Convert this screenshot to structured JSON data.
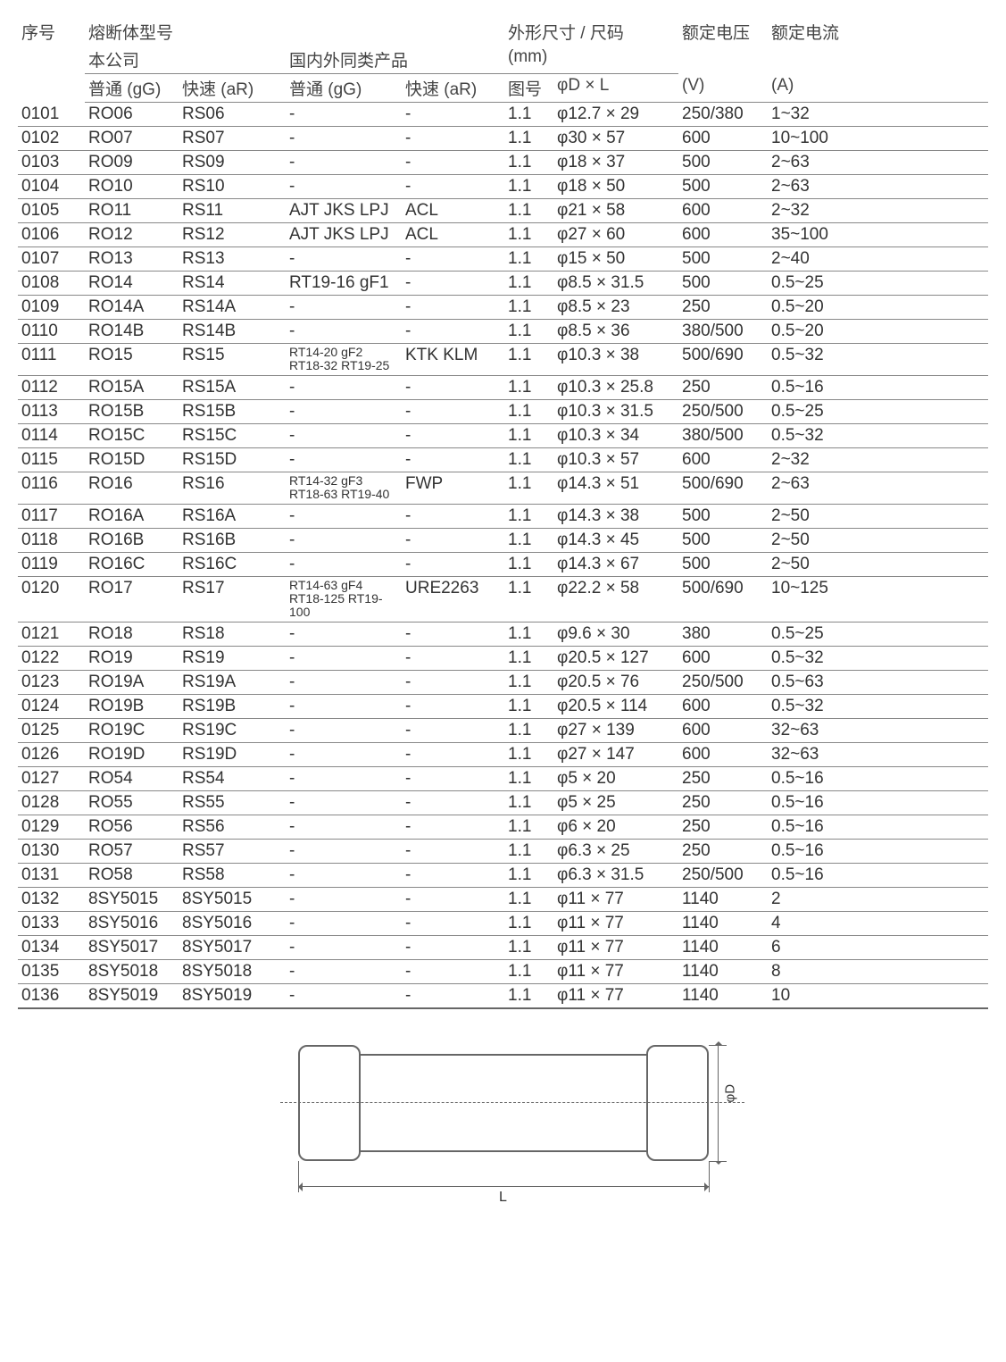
{
  "headers": {
    "seq": "序号",
    "model_group": "熔断体型号",
    "company": "本公司",
    "domestic": "国内外同类产品",
    "size_group": "外形尺寸 / 尺码",
    "size_unit": "(mm)",
    "voltage": "额定电压",
    "current": "额定电流",
    "gg": "普通 (gG)",
    "ar": "快速 (aR)",
    "fig": "图号",
    "dim": "φD × L",
    "v_unit": "(V)",
    "a_unit": "(A)"
  },
  "diagram": {
    "label_d": "φD",
    "label_l": "L"
  },
  "rows": [
    {
      "seq": "0101",
      "gg1": "RO06",
      "ar1": "RS06",
      "gg2": "-",
      "ar2": "-",
      "fig": "1.1",
      "dim": "φ12.7 × 29",
      "v": "250/380",
      "a": "1~32"
    },
    {
      "seq": "0102",
      "gg1": "RO07",
      "ar1": "RS07",
      "gg2": "-",
      "ar2": "-",
      "fig": "1.1",
      "dim": "φ30 × 57",
      "v": "600",
      "a": "10~100"
    },
    {
      "seq": "0103",
      "gg1": "RO09",
      "ar1": "RS09",
      "gg2": "-",
      "ar2": "-",
      "fig": "1.1",
      "dim": "φ18 × 37",
      "v": "500",
      "a": "2~63"
    },
    {
      "seq": "0104",
      "gg1": "RO10",
      "ar1": "RS10",
      "gg2": "-",
      "ar2": "-",
      "fig": "1.1",
      "dim": "φ18 × 50",
      "v": "500",
      "a": "2~63"
    },
    {
      "seq": "0105",
      "gg1": "RO11",
      "ar1": "RS11",
      "gg2": "AJT JKS LPJ",
      "ar2": "ACL",
      "fig": "1.1",
      "dim": "φ21 × 58",
      "v": "600",
      "a": "2~32"
    },
    {
      "seq": "0106",
      "gg1": "RO12",
      "ar1": "RS12",
      "gg2": "AJT JKS LPJ",
      "ar2": "ACL",
      "fig": "1.1",
      "dim": "φ27 × 60",
      "v": "600",
      "a": "35~100"
    },
    {
      "seq": "0107",
      "gg1": "RO13",
      "ar1": "RS13",
      "gg2": "-",
      "ar2": "-",
      "fig": "1.1",
      "dim": "φ15 × 50",
      "v": "500",
      "a": "2~40"
    },
    {
      "seq": "0108",
      "gg1": "RO14",
      "ar1": "RS14",
      "gg2": "RT19-16 gF1",
      "ar2": "-",
      "fig": "1.1",
      "dim": "φ8.5 × 31.5",
      "v": "500",
      "a": "0.5~25"
    },
    {
      "seq": "0109",
      "gg1": "RO14A",
      "ar1": "RS14A",
      "gg2": "-",
      "ar2": "-",
      "fig": "1.1",
      "dim": "φ8.5 × 23",
      "v": "250",
      "a": "0.5~20"
    },
    {
      "seq": "0110",
      "gg1": "RO14B",
      "ar1": "RS14B",
      "gg2": "-",
      "ar2": "-",
      "fig": "1.1",
      "dim": "φ8.5 × 36",
      "v": "380/500",
      "a": "0.5~20"
    },
    {
      "seq": "0111",
      "gg1": "RO15",
      "ar1": "RS15",
      "gg2": "RT14-20 gF2\nRT18-32 RT19-25",
      "ar2": "KTK KLM",
      "fig": "1.1",
      "dim": "φ10.3 × 38",
      "v": "500/690",
      "a": "0.5~32"
    },
    {
      "seq": "0112",
      "gg1": "RO15A",
      "ar1": "RS15A",
      "gg2": "-",
      "ar2": "-",
      "fig": "1.1",
      "dim": "φ10.3 × 25.8",
      "v": "250",
      "a": "0.5~16"
    },
    {
      "seq": "0113",
      "gg1": "RO15B",
      "ar1": "RS15B",
      "gg2": "-",
      "ar2": "-",
      "fig": "1.1",
      "dim": "φ10.3 × 31.5",
      "v": "250/500",
      "a": "0.5~25"
    },
    {
      "seq": "0114",
      "gg1": "RO15C",
      "ar1": "RS15C",
      "gg2": "-",
      "ar2": "-",
      "fig": "1.1",
      "dim": "φ10.3 × 34",
      "v": "380/500",
      "a": "0.5~32"
    },
    {
      "seq": "0115",
      "gg1": "RO15D",
      "ar1": "RS15D",
      "gg2": "-",
      "ar2": "-",
      "fig": "1.1",
      "dim": "φ10.3 × 57",
      "v": "600",
      "a": "2~32"
    },
    {
      "seq": "0116",
      "gg1": "RO16",
      "ar1": "RS16",
      "gg2": "RT14-32 gF3\nRT18-63 RT19-40",
      "ar2": "FWP",
      "fig": "1.1",
      "dim": "φ14.3 × 51",
      "v": "500/690",
      "a": "2~63"
    },
    {
      "seq": "0117",
      "gg1": "RO16A",
      "ar1": "RS16A",
      "gg2": "-",
      "ar2": "-",
      "fig": "1.1",
      "dim": "φ14.3 × 38",
      "v": "500",
      "a": "2~50"
    },
    {
      "seq": "0118",
      "gg1": "RO16B",
      "ar1": "RS16B",
      "gg2": "-",
      "ar2": "-",
      "fig": "1.1",
      "dim": "φ14.3 × 45",
      "v": "500",
      "a": "2~50"
    },
    {
      "seq": "0119",
      "gg1": "RO16C",
      "ar1": "RS16C",
      "gg2": "-",
      "ar2": "-",
      "fig": "1.1",
      "dim": "φ14.3 × 67",
      "v": "500",
      "a": "2~50"
    },
    {
      "seq": "0120",
      "gg1": "RO17",
      "ar1": "RS17",
      "gg2": "RT14-63 gF4\nRT18-125 RT19-100",
      "ar2": "URE2263",
      "fig": "1.1",
      "dim": "φ22.2 × 58",
      "v": "500/690",
      "a": "10~125"
    },
    {
      "seq": "0121",
      "gg1": "RO18",
      "ar1": "RS18",
      "gg2": "-",
      "ar2": "-",
      "fig": "1.1",
      "dim": "φ9.6 × 30",
      "v": "380",
      "a": "0.5~25"
    },
    {
      "seq": "0122",
      "gg1": "RO19",
      "ar1": "RS19",
      "gg2": "-",
      "ar2": "-",
      "fig": "1.1",
      "dim": "φ20.5 × 127",
      "v": "600",
      "a": "0.5~32"
    },
    {
      "seq": "0123",
      "gg1": "RO19A",
      "ar1": "RS19A",
      "gg2": "-",
      "ar2": "-",
      "fig": "1.1",
      "dim": "φ20.5 × 76",
      "v": "250/500",
      "a": "0.5~63"
    },
    {
      "seq": "0124",
      "gg1": "RO19B",
      "ar1": "RS19B",
      "gg2": "-",
      "ar2": "-",
      "fig": "1.1",
      "dim": "φ20.5 × 114",
      "v": "600",
      "a": "0.5~32"
    },
    {
      "seq": "0125",
      "gg1": "RO19C",
      "ar1": "RS19C",
      "gg2": "-",
      "ar2": "-",
      "fig": "1.1",
      "dim": "φ27 × 139",
      "v": "600",
      "a": "32~63"
    },
    {
      "seq": "0126",
      "gg1": "RO19D",
      "ar1": "RS19D",
      "gg2": "-",
      "ar2": "-",
      "fig": "1.1",
      "dim": "φ27 × 147",
      "v": "600",
      "a": "32~63"
    },
    {
      "seq": "0127",
      "gg1": "RO54",
      "ar1": "RS54",
      "gg2": "-",
      "ar2": "-",
      "fig": "1.1",
      "dim": "φ5 × 20",
      "v": "250",
      "a": "0.5~16"
    },
    {
      "seq": "0128",
      "gg1": "RO55",
      "ar1": "RS55",
      "gg2": "-",
      "ar2": "-",
      "fig": "1.1",
      "dim": "φ5 × 25",
      "v": "250",
      "a": "0.5~16"
    },
    {
      "seq": "0129",
      "gg1": "RO56",
      "ar1": "RS56",
      "gg2": "-",
      "ar2": "-",
      "fig": "1.1",
      "dim": "φ6 × 20",
      "v": "250",
      "a": "0.5~16"
    },
    {
      "seq": "0130",
      "gg1": "RO57",
      "ar1": "RS57",
      "gg2": "-",
      "ar2": "-",
      "fig": "1.1",
      "dim": "φ6.3 × 25",
      "v": "250",
      "a": "0.5~16"
    },
    {
      "seq": "0131",
      "gg1": "RO58",
      "ar1": "RS58",
      "gg2": "-",
      "ar2": "-",
      "fig": "1.1",
      "dim": "φ6.3 × 31.5",
      "v": "250/500",
      "a": "0.5~16"
    },
    {
      "seq": "0132",
      "gg1": "8SY5015",
      "ar1": "8SY5015",
      "gg2": "-",
      "ar2": "-",
      "fig": "1.1",
      "dim": "φ11 × 77",
      "v": "1140",
      "a": "2"
    },
    {
      "seq": "0133",
      "gg1": "8SY5016",
      "ar1": "8SY5016",
      "gg2": "-",
      "ar2": "-",
      "fig": "1.1",
      "dim": "φ11 × 77",
      "v": "1140",
      "a": "4"
    },
    {
      "seq": "0134",
      "gg1": "8SY5017",
      "ar1": "8SY5017",
      "gg2": "-",
      "ar2": "-",
      "fig": "1.1",
      "dim": "φ11 × 77",
      "v": "1140",
      "a": "6"
    },
    {
      "seq": "0135",
      "gg1": "8SY5018",
      "ar1": "8SY5018",
      "gg2": "-",
      "ar2": "-",
      "fig": "1.1",
      "dim": "φ11 × 77",
      "v": "1140",
      "a": "8"
    },
    {
      "seq": "0136",
      "gg1": "8SY5019",
      "ar1": "8SY5019",
      "gg2": "-",
      "ar2": "-",
      "fig": "1.1",
      "dim": "φ11 × 77",
      "v": "1140",
      "a": "10"
    }
  ]
}
